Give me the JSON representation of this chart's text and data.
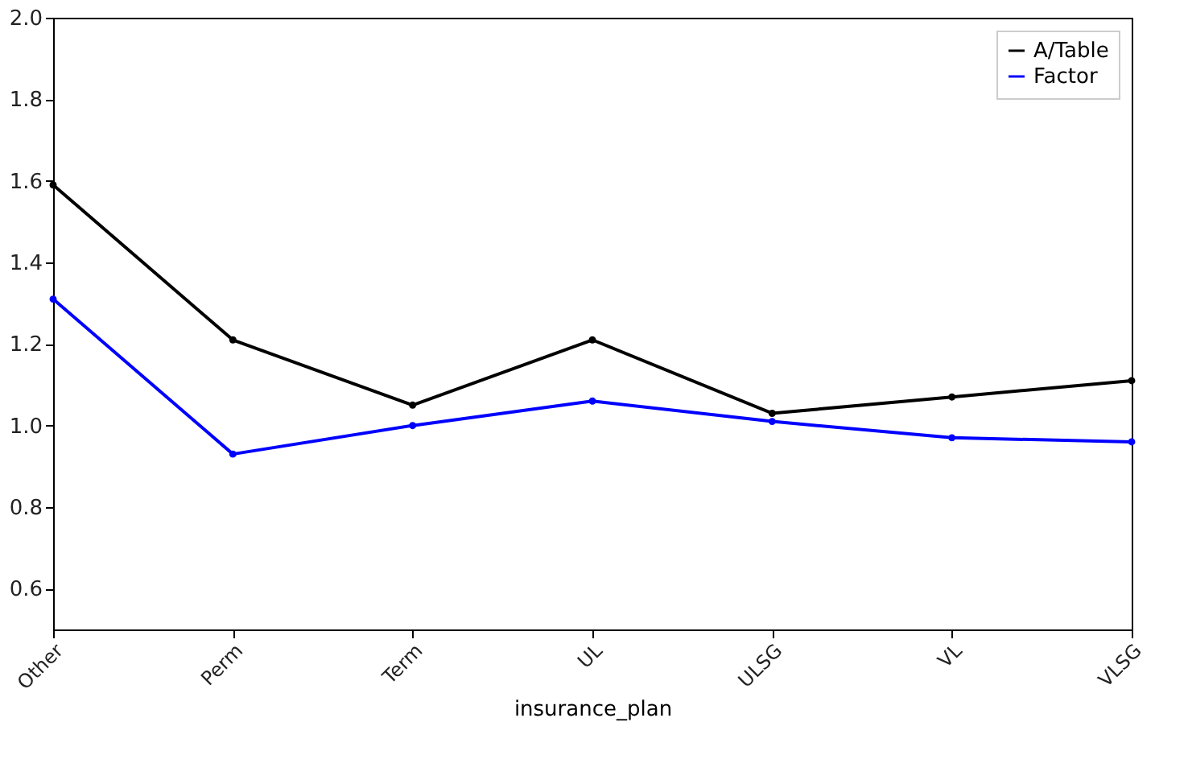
{
  "chart_data": {
    "type": "line",
    "xlabel": "insurance_plan",
    "categories": [
      "Other",
      "Perm",
      "Term",
      "UL",
      "ULSG",
      "VL",
      "VLSG"
    ],
    "series": [
      {
        "name": "A/Table",
        "color": "#000000",
        "values": [
          1.59,
          1.21,
          1.05,
          1.21,
          1.03,
          1.07,
          1.11
        ]
      },
      {
        "name": "Factor",
        "color": "#0000ff",
        "values": [
          1.31,
          0.93,
          1.0,
          1.06,
          1.01,
          0.97,
          0.96
        ]
      }
    ],
    "ylim": [
      0.5,
      2.0
    ],
    "yticks": [
      0.6,
      0.8,
      {
        "value": 1,
        "label": "1.0"
      },
      1.2,
      1.4,
      1.6,
      1.8,
      {
        "value": 2,
        "label": "2.0"
      }
    ],
    "legend": "top right",
    "marker": "circle",
    "line_style": "solid",
    "grid": false
  }
}
